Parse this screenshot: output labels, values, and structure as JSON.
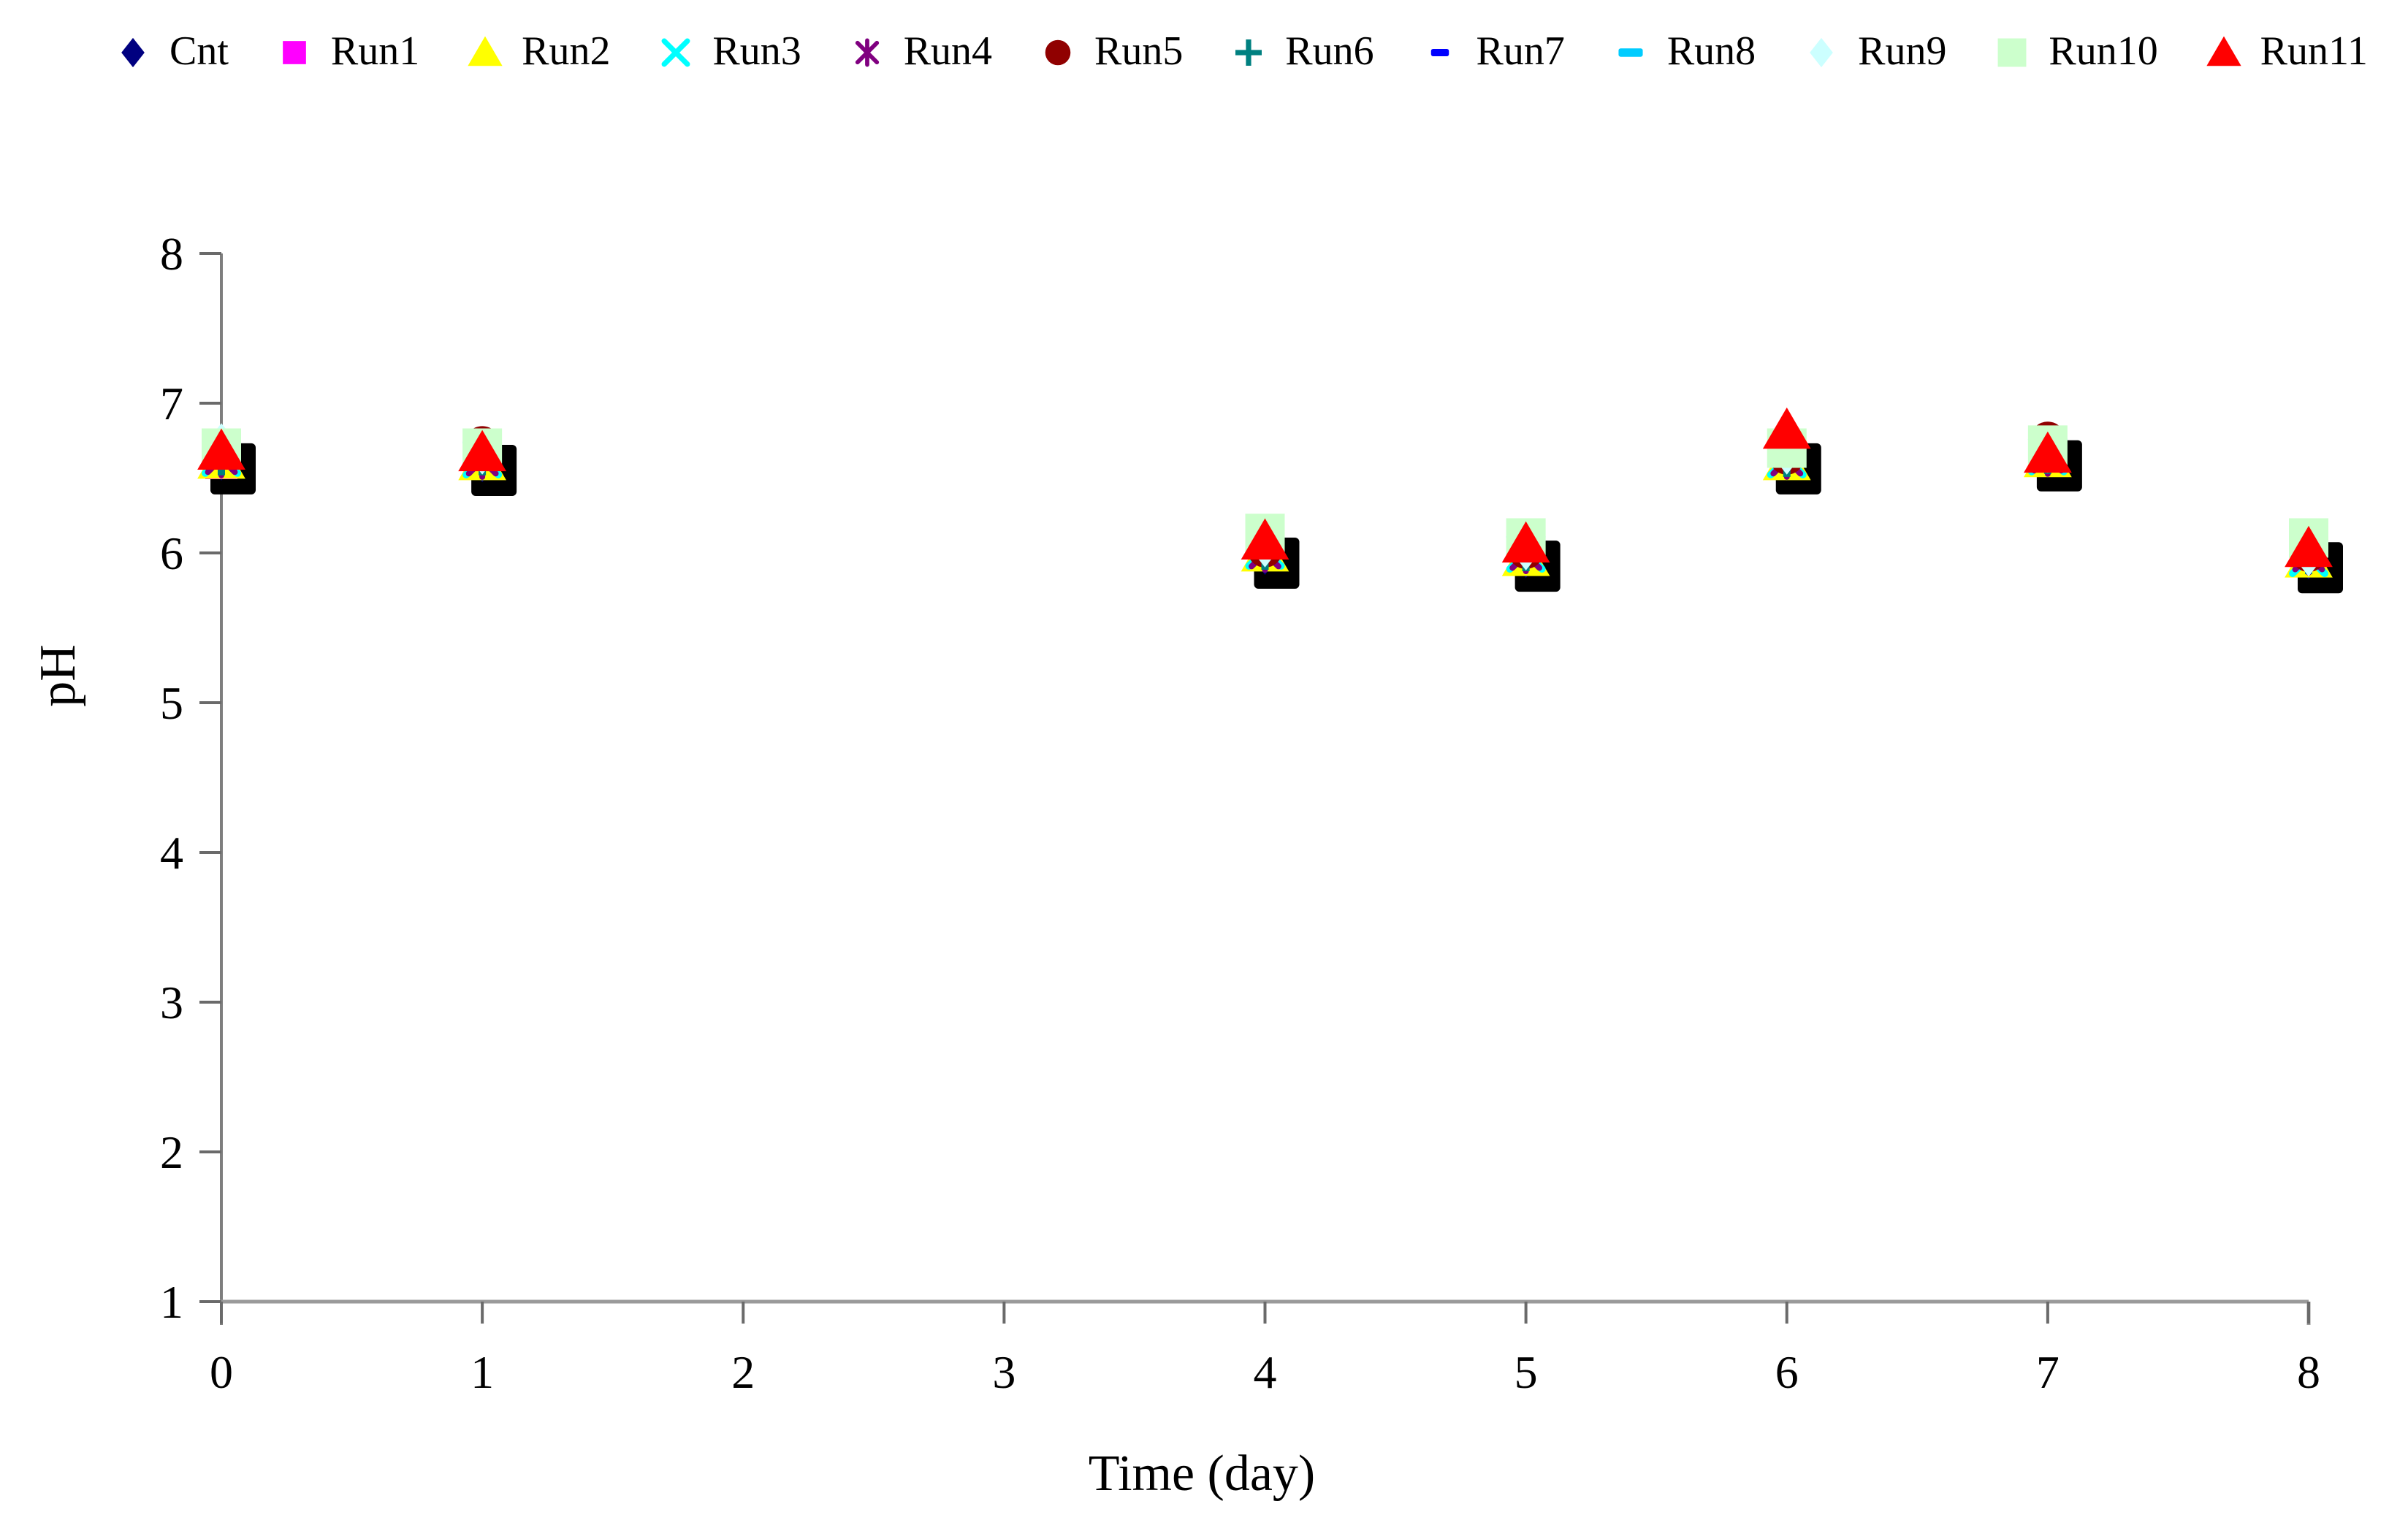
{
  "chart_data": {
    "type": "scatter",
    "xlabel": "Time (day)",
    "ylabel": "pH",
    "xlim": [
      0,
      8
    ],
    "ylim": [
      1,
      8
    ],
    "x_ticks": [
      0,
      1,
      2,
      3,
      4,
      5,
      6,
      7,
      8
    ],
    "y_ticks": [
      1,
      2,
      3,
      4,
      5,
      6,
      7,
      8
    ],
    "grid": false,
    "legend_position": "top",
    "marker_shadow": true,
    "axis_color": "#9a9a9a",
    "tick_color": "#6a6a6a",
    "tick_label_color": "#000000",
    "shadow_color": "#000000",
    "x": [
      0,
      1,
      4,
      5,
      6,
      7,
      8
    ],
    "series": [
      {
        "name": "Cnt",
        "marker": "diamond",
        "color": "#000080",
        "values": [
          6.62,
          6.61,
          5.99,
          5.97,
          6.62,
          6.64,
          5.96
        ]
      },
      {
        "name": "Run1",
        "marker": "square",
        "color": "#FF00FF",
        "values": [
          6.6,
          6.6,
          6.0,
          5.99,
          6.61,
          6.74,
          6.0
        ]
      },
      {
        "name": "Run2",
        "marker": "triangle",
        "color": "#FFFF00",
        "values": [
          6.62,
          6.61,
          6.0,
          5.97,
          6.61,
          6.63,
          5.96
        ]
      },
      {
        "name": "Run3",
        "marker": "x",
        "color": "#00FFFF",
        "values": [
          6.64,
          6.63,
          6.02,
          6.0,
          6.63,
          6.65,
          5.97
        ]
      },
      {
        "name": "Run4",
        "marker": "star",
        "color": "#800080",
        "values": [
          6.63,
          6.62,
          6.0,
          5.99,
          6.62,
          6.64,
          5.98
        ]
      },
      {
        "name": "Run5",
        "marker": "circle",
        "color": "#900000",
        "values": [
          6.67,
          6.73,
          6.02,
          6.01,
          6.64,
          6.76,
          5.99
        ]
      },
      {
        "name": "Run6",
        "marker": "plus",
        "color": "#008080",
        "values": [
          6.64,
          6.64,
          6.01,
          6.0,
          6.63,
          6.65,
          5.98
        ]
      },
      {
        "name": "Run7",
        "marker": "dash-sm",
        "color": "#0000FF",
        "values": [
          6.63,
          6.62,
          6.0,
          5.99,
          6.62,
          6.64,
          5.97
        ]
      },
      {
        "name": "Run8",
        "marker": "dash",
        "color": "#00CCFF",
        "values": [
          6.65,
          6.64,
          6.02,
          6.0,
          6.64,
          6.63,
          5.99
        ]
      },
      {
        "name": "Run9",
        "marker": "diamond",
        "color": "#CCFFFF",
        "values": [
          6.73,
          6.66,
          6.04,
          6.02,
          6.66,
          6.67,
          5.98
        ]
      },
      {
        "name": "Run10",
        "marker": "square-lg",
        "color": "#CCFFCC",
        "values": [
          6.7,
          6.7,
          6.13,
          6.1,
          6.7,
          6.72,
          6.1
        ]
      },
      {
        "name": "Run11",
        "marker": "triangle",
        "color": "#FF0000",
        "values": [
          6.68,
          6.67,
          6.08,
          6.06,
          6.82,
          6.66,
          6.03
        ]
      }
    ]
  }
}
